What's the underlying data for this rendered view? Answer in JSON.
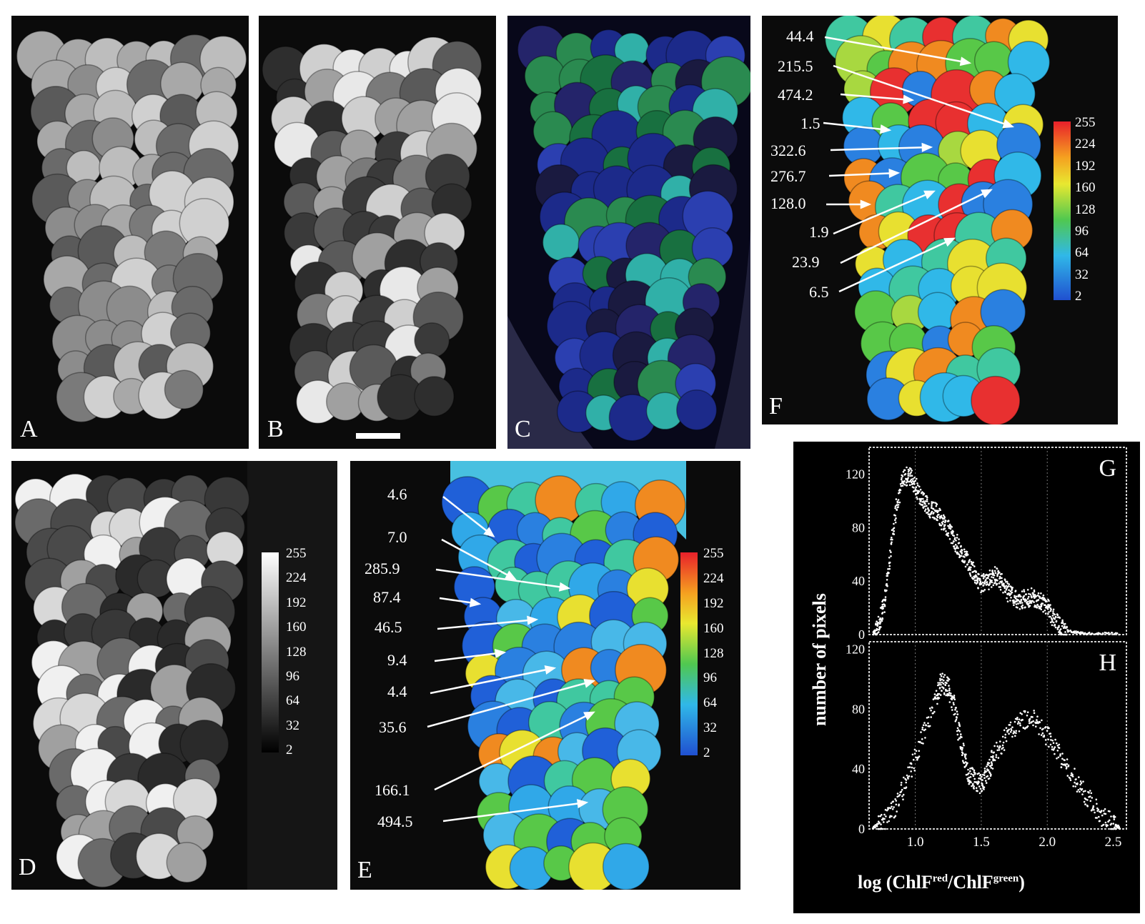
{
  "panels": {
    "A": {
      "letter": "A"
    },
    "B": {
      "letter": "B"
    },
    "C": {
      "letter": "C"
    },
    "D": {
      "letter": "D",
      "scale": [
        "255",
        "224",
        "192",
        "160",
        "128",
        "96",
        "64",
        "32",
        "2"
      ]
    },
    "E": {
      "letter": "E",
      "scale": [
        "255",
        "224",
        "192",
        "160",
        "128",
        "96",
        "64",
        "32",
        "2"
      ],
      "values": [
        "4.6",
        "7.0",
        "285.9",
        "87.4",
        "46.5",
        "9.4",
        "4.4",
        "35.6",
        "166.1",
        "494.5"
      ]
    },
    "F": {
      "letter": "F",
      "scale": [
        "255",
        "224",
        "192",
        "160",
        "128",
        "96",
        "64",
        "32",
        "2"
      ],
      "values": [
        "44.4",
        "215.5",
        "474.2",
        "1.5",
        "322.6",
        "276.7",
        "128.0",
        "1.9",
        "23.9",
        "6.5"
      ]
    }
  },
  "chart_data": [
    {
      "type": "scatter",
      "panel_letter": "G",
      "xlim": [
        0.65,
        2.6
      ],
      "ylim": [
        0,
        140
      ],
      "yticks": [
        "0",
        "40",
        "80",
        "120"
      ],
      "curve": [
        [
          0.68,
          0
        ],
        [
          0.72,
          5
        ],
        [
          0.76,
          20
        ],
        [
          0.8,
          50
        ],
        [
          0.85,
          90
        ],
        [
          0.9,
          115
        ],
        [
          0.95,
          120
        ],
        [
          1.0,
          112
        ],
        [
          1.05,
          100
        ],
        [
          1.1,
          95
        ],
        [
          1.15,
          92
        ],
        [
          1.2,
          85
        ],
        [
          1.25,
          80
        ],
        [
          1.3,
          70
        ],
        [
          1.35,
          62
        ],
        [
          1.4,
          55
        ],
        [
          1.45,
          45
        ],
        [
          1.5,
          38
        ],
        [
          1.55,
          40
        ],
        [
          1.6,
          45
        ],
        [
          1.65,
          40
        ],
        [
          1.7,
          32
        ],
        [
          1.75,
          28
        ],
        [
          1.8,
          26
        ],
        [
          1.85,
          27
        ],
        [
          1.9,
          28
        ],
        [
          1.95,
          25
        ],
        [
          2.0,
          20
        ],
        [
          2.05,
          12
        ],
        [
          2.1,
          5
        ],
        [
          2.15,
          2
        ],
        [
          2.3,
          0
        ],
        [
          2.55,
          0
        ]
      ]
    },
    {
      "type": "scatter",
      "panel_letter": "H",
      "xlim": [
        0.65,
        2.6
      ],
      "ylim": [
        0,
        125
      ],
      "yticks": [
        "0",
        "40",
        "80",
        "120"
      ],
      "xticks": [
        "1.0",
        "1.5",
        "2.0",
        "2.5"
      ],
      "xlabel_main": "log (ChlF",
      "xlabel_sup1": "red",
      "xlabel_mid": "/ChlF",
      "xlabel_sup2": "green",
      "xlabel_end": ")",
      "ylabel": "number of pixels",
      "curve": [
        [
          0.68,
          0
        ],
        [
          0.75,
          4
        ],
        [
          0.85,
          15
        ],
        [
          0.95,
          35
        ],
        [
          1.05,
          60
        ],
        [
          1.15,
          85
        ],
        [
          1.2,
          98
        ],
        [
          1.25,
          95
        ],
        [
          1.3,
          80
        ],
        [
          1.35,
          55
        ],
        [
          1.4,
          38
        ],
        [
          1.45,
          32
        ],
        [
          1.5,
          30
        ],
        [
          1.55,
          38
        ],
        [
          1.6,
          50
        ],
        [
          1.7,
          62
        ],
        [
          1.8,
          72
        ],
        [
          1.9,
          72
        ],
        [
          2.0,
          62
        ],
        [
          2.1,
          48
        ],
        [
          2.2,
          35
        ],
        [
          2.3,
          22
        ],
        [
          2.4,
          10
        ],
        [
          2.5,
          3
        ],
        [
          2.55,
          0
        ]
      ]
    }
  ]
}
